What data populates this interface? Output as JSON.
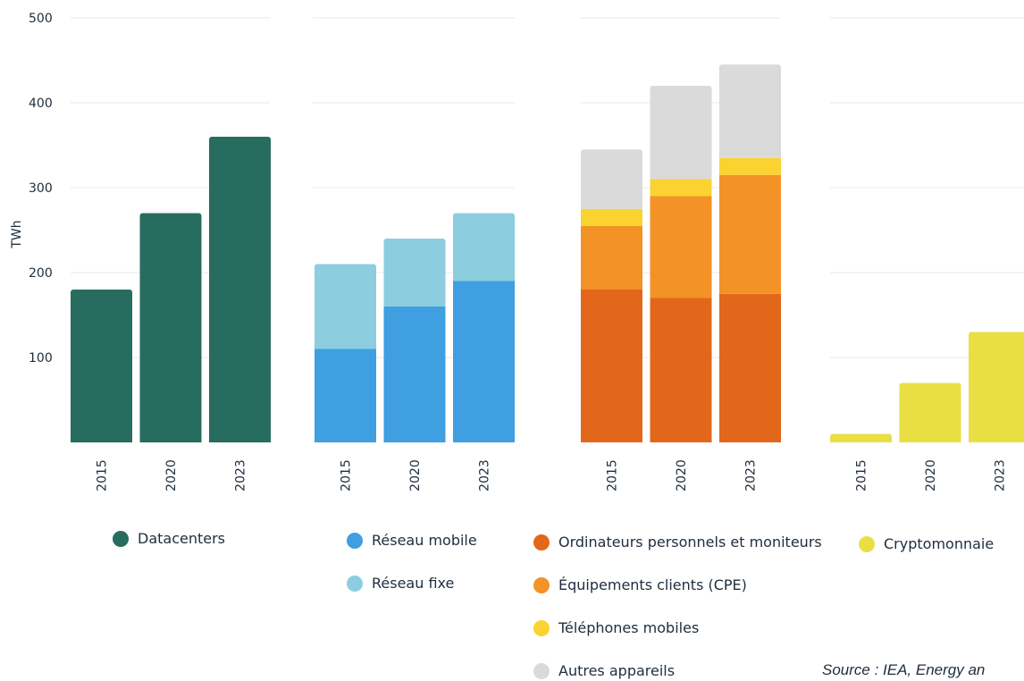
{
  "chart_data": {
    "type": "bar",
    "stacked": true,
    "ylabel": "TWh",
    "ylim": [
      0,
      500
    ],
    "yticks": [
      100,
      200,
      300,
      400,
      500
    ],
    "grid": true,
    "panels": [
      {
        "categories": [
          "2015",
          "2020",
          "2023"
        ],
        "series": [
          {
            "name": "Datacenters",
            "color": "#276d5f",
            "values": [
              180,
              270,
              360
            ]
          }
        ]
      },
      {
        "categories": [
          "2015",
          "2020",
          "2023"
        ],
        "series": [
          {
            "name": "Réseau mobile",
            "color": "#3f9fe0",
            "values": [
              110,
              160,
              190
            ]
          },
          {
            "name": "Réseau fixe",
            "color": "#8ccde0",
            "values": [
              100,
              80,
              80
            ]
          }
        ]
      },
      {
        "categories": [
          "2015",
          "2020",
          "2023"
        ],
        "series": [
          {
            "name": "Ordinateurs personnels et moniteurs",
            "color": "#e2671b",
            "values": [
              180,
              170,
              175
            ]
          },
          {
            "name": "Équipements clients (CPE)",
            "color": "#f39226",
            "values": [
              75,
              120,
              140
            ]
          },
          {
            "name": "Téléphones mobiles",
            "color": "#fbd330",
            "values": [
              20,
              20,
              20
            ]
          },
          {
            "name": "Autres appareils",
            "color": "#dadada",
            "values": [
              70,
              110,
              110
            ]
          }
        ]
      },
      {
        "categories": [
          "2015",
          "2020",
          "2023"
        ],
        "series": [
          {
            "name": "Cryptomonnaie",
            "color": "#e9df45",
            "values": [
              10,
              70,
              130
            ]
          }
        ]
      }
    ],
    "source": "Source : IEA, Energy an"
  }
}
